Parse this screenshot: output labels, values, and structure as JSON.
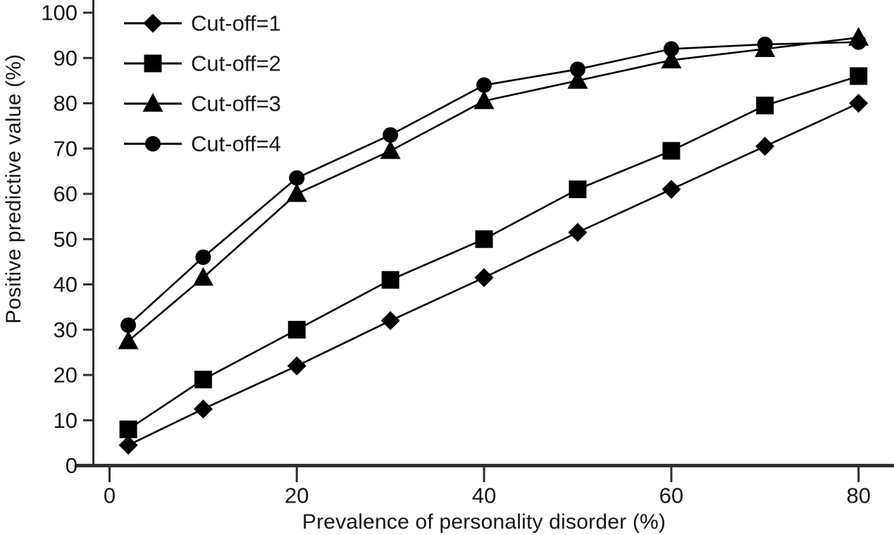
{
  "figure": {
    "colors": {
      "background": "#ffffff",
      "ink": "#000000",
      "axis": "#2f2f2f",
      "tick_text": "#161616"
    }
  },
  "chart_data": {
    "type": "line",
    "title": "",
    "xlabel": "Prevalence of personality disorder (%)",
    "ylabel": "Positive predictive value (%)",
    "x": [
      2,
      10,
      20,
      30,
      40,
      50,
      60,
      70,
      80
    ],
    "series": [
      {
        "name": "Cut-off=1",
        "marker": "diamond",
        "values": [
          4.5,
          12.5,
          22,
          32,
          41.5,
          51.5,
          61,
          70.5,
          80
        ]
      },
      {
        "name": "Cut-off=2",
        "marker": "square",
        "values": [
          8,
          19,
          30,
          41,
          50,
          61,
          69.5,
          79.5,
          86
        ]
      },
      {
        "name": "Cut-off=3",
        "marker": "triangle",
        "values": [
          27.5,
          41.5,
          60,
          69.5,
          80.5,
          85,
          89.5,
          92,
          94.5
        ]
      },
      {
        "name": "Cut-off=4",
        "marker": "circle",
        "values": [
          31,
          46,
          63.5,
          73,
          84,
          87.5,
          92,
          93,
          93.5
        ]
      }
    ],
    "xlim": [
      0,
      84
    ],
    "ylim": [
      0,
      100
    ],
    "x_ticks": [
      0,
      20,
      40,
      60,
      80
    ],
    "y_ticks": [
      0,
      10,
      20,
      30,
      40,
      50,
      60,
      70,
      80,
      90,
      100
    ],
    "grid": false,
    "legend_position": "top-left",
    "marker_color": "#000000",
    "line_color": "#000000"
  }
}
